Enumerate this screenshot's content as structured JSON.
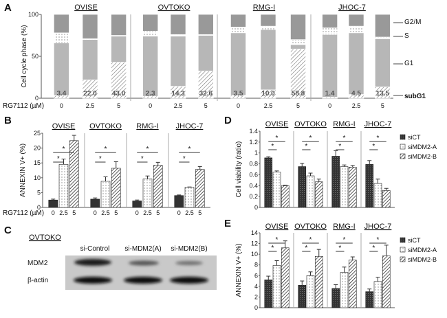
{
  "panel_labels": {
    "a": "A",
    "b": "B",
    "c": "C",
    "d": "D",
    "e": "E"
  },
  "chart_data": [
    {
      "panel": "A",
      "type": "bar",
      "stacked": true,
      "groups": [
        "OVISE",
        "OVTOKO",
        "RMG-I",
        "JHOC-7"
      ],
      "categories": [
        "0",
        "2.5",
        "5"
      ],
      "xlabel": "RG7112 (µM)",
      "ylabel": "Cell cycle phase (%)",
      "ylim": [
        0,
        100
      ],
      "yticks": [
        "0",
        "50",
        "100"
      ],
      "phases": [
        "subG1",
        "G1",
        "S",
        "G2/M"
      ],
      "data": [
        [
          [
            3.4,
            62.6,
            12,
            22
          ],
          [
            22.0,
            48,
            1,
            29
          ],
          [
            43.0,
            31,
            1,
            25
          ]
        ],
        [
          [
            2.3,
            71.7,
            6,
            20
          ],
          [
            14.3,
            59.7,
            2,
            24
          ],
          [
            32.6,
            42.4,
            1,
            24
          ]
        ],
        [
          [
            3.5,
            74.5,
            7,
            15
          ],
          [
            10.0,
            72,
            4,
            14
          ],
          [
            58.8,
            5.2,
            6,
            30
          ]
        ],
        [
          [
            1.4,
            74.6,
            8,
            16
          ],
          [
            4.5,
            73.5,
            8,
            14
          ],
          [
            13.5,
            57.5,
            2,
            27
          ]
        ]
      ],
      "bar_labels": [
        [
          "3.4",
          "22.0",
          "43.0"
        ],
        [
          "2.3",
          "14.3",
          "32.6"
        ],
        [
          "3.5",
          "10.0",
          "58.8"
        ],
        [
          "1.4",
          "4.5",
          "13.5"
        ]
      ],
      "phase_labels": [
        "G2/M",
        "S",
        "G1",
        "subG1"
      ]
    },
    {
      "panel": "B",
      "type": "bar",
      "groups": [
        "OVISE",
        "OVTOKO",
        "RMG-I",
        "JHOC-7"
      ],
      "categories": [
        "0",
        "2.5",
        "5"
      ],
      "xlabel": "RG7112 (µM)",
      "ylabel": "ANNEXIN V+ (%)",
      "ylim": [
        0,
        25
      ],
      "yticks": [
        "0",
        "5",
        "10",
        "15",
        "20",
        "25"
      ],
      "values": [
        [
          2.5,
          14.5,
          22.5
        ],
        [
          2.8,
          8.8,
          13.2
        ],
        [
          2.2,
          9.6,
          14.2
        ],
        [
          4.0,
          6.8,
          12.8
        ]
      ],
      "errors": [
        [
          0.3,
          1.8,
          1.8
        ],
        [
          0.4,
          1.5,
          2.2
        ],
        [
          0.3,
          1.0,
          1.0
        ],
        [
          0.2,
          0.1,
          1.0
        ]
      ],
      "significance": "*"
    },
    {
      "panel": "D",
      "type": "bar",
      "groups": [
        "OVISE",
        "OVTOKO",
        "RMG-I",
        "JHOC-7"
      ],
      "series": [
        "siCT",
        "siMDM2-A",
        "siMDM2-B"
      ],
      "ylabel": "Cell viability (ratio)",
      "ylim": [
        0,
        1.4
      ],
      "yticks": [
        "0",
        "0.2",
        "0.4",
        "0.6",
        "0.8",
        "1",
        "1.2",
        "1.4"
      ],
      "values": [
        [
          0.91,
          0.65,
          0.4
        ],
        [
          0.75,
          0.58,
          0.47
        ],
        [
          0.94,
          0.75,
          0.74
        ],
        [
          0.79,
          0.44,
          0.31
        ]
      ],
      "errors": [
        [
          0.02,
          0.02,
          0.01
        ],
        [
          0.06,
          0.05,
          0.05
        ],
        [
          0.1,
          0.03,
          0.03
        ],
        [
          0.07,
          0.08,
          0.04
        ]
      ],
      "significance": "*"
    },
    {
      "panel": "E",
      "type": "bar",
      "groups": [
        "OVISE",
        "OVTOKO",
        "RMG-I",
        "JHOC-7"
      ],
      "series": [
        "siCT",
        "siMDM2-A",
        "siMDM2-B"
      ],
      "ylabel": "ANNEXIN V+ (%)",
      "ylim": [
        0,
        14
      ],
      "yticks": [
        "0",
        "2",
        "4",
        "6",
        "8",
        "10",
        "12",
        "14"
      ],
      "values": [
        [
          5.2,
          7.9,
          11.2
        ],
        [
          4.2,
          6.0,
          9.6
        ],
        [
          3.6,
          6.6,
          8.9
        ],
        [
          3.0,
          4.9,
          9.7
        ]
      ],
      "errors": [
        [
          0.7,
          0.9,
          1.3
        ],
        [
          0.8,
          0.7,
          1.3
        ],
        [
          0.7,
          1.0,
          0.6
        ],
        [
          0.5,
          0.8,
          2.0
        ]
      ],
      "significance": "*"
    }
  ],
  "blot": {
    "title": "OVTOKO",
    "lanes": [
      "si-Control",
      "si-MDM2(A)",
      "si-MDM2(B)"
    ],
    "rows": [
      "MDM2",
      "β-actin"
    ]
  }
}
